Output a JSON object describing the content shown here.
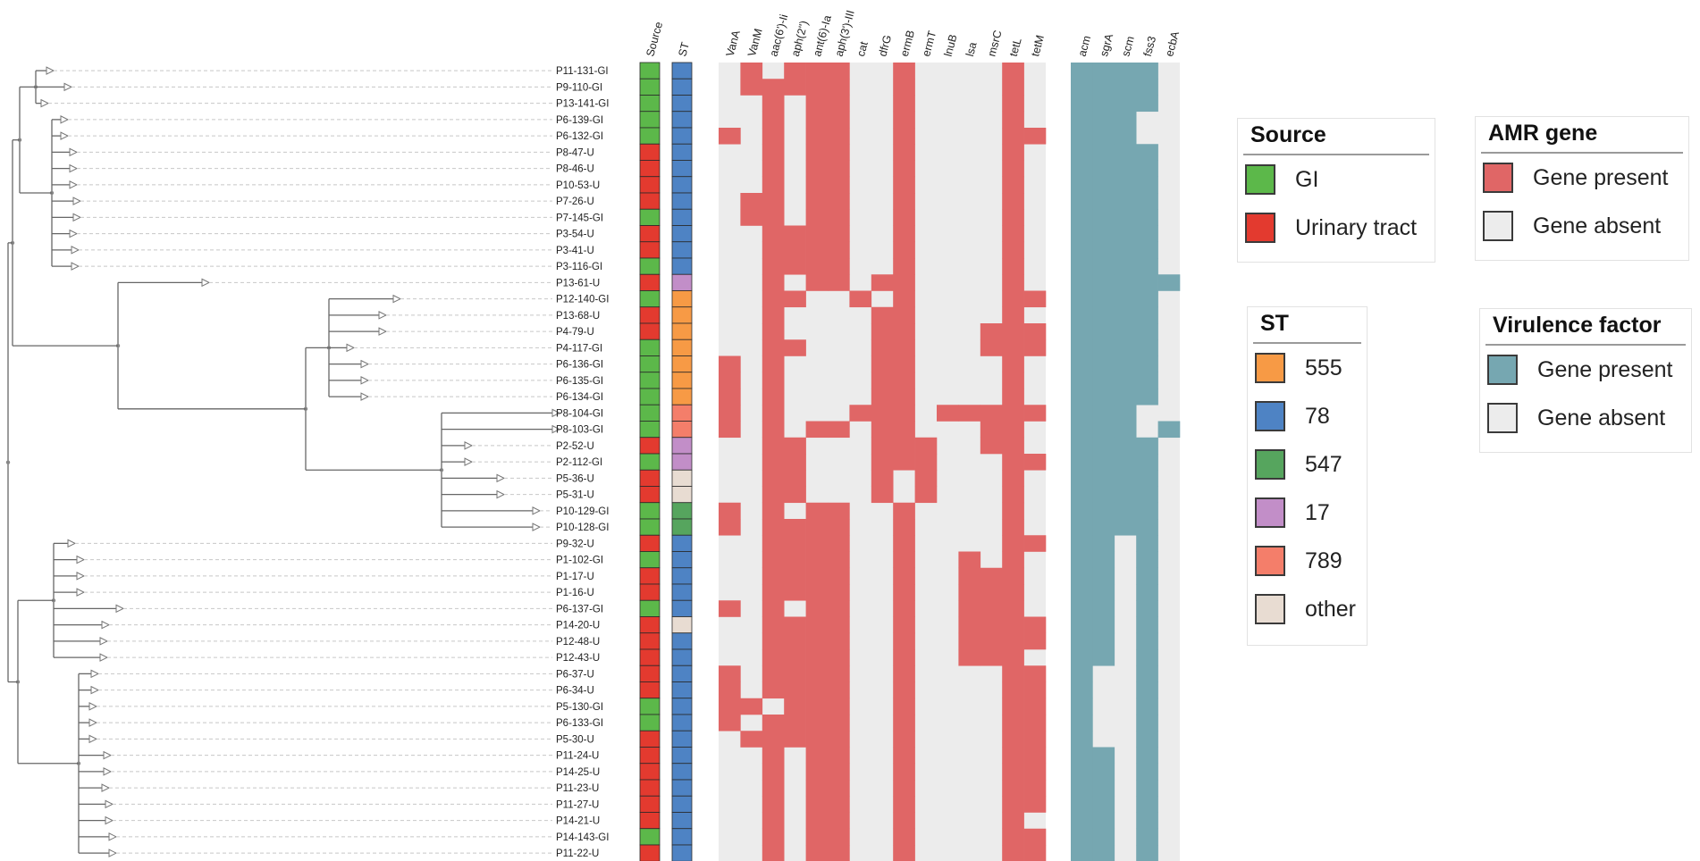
{
  "colors": {
    "source": {
      "GI": "#5cb84a",
      "Urinary tract": "#e33a2f"
    },
    "st": {
      "555": "#f79a45",
      "78": "#4e83c4",
      "547": "#56a55e",
      "17": "#c28ec8",
      "789": "#f47e6a",
      "other": "#e8dcd2"
    },
    "amr_present": "#e06666",
    "amr_absent": "#ececec",
    "vir_present": "#76a7b1",
    "vir_absent": "#ececec",
    "tree": "#666666"
  },
  "columns": {
    "meta": [
      "Source",
      "ST"
    ],
    "amr": [
      "VanA",
      "VanM",
      "aac(6')-Ii",
      "aph(2'')",
      "ant(6)-Ia",
      "aph(3')-III",
      "cat",
      "dfrG",
      "ermB",
      "ermT",
      "lnuB",
      "lsa",
      "msrC",
      "tetL",
      "tetM"
    ],
    "vir": [
      "acm",
      "sgrA",
      "scm",
      "fss3",
      "ecbA"
    ]
  },
  "legends": {
    "source": {
      "title": "Source",
      "items": [
        {
          "label": "GI",
          "key": "GI"
        },
        {
          "label": "Urinary tract",
          "key": "Urinary tract"
        }
      ]
    },
    "amr": {
      "title": "AMR gene",
      "items": [
        {
          "label": "Gene present"
        },
        {
          "label": "Gene absent"
        }
      ]
    },
    "st": {
      "title": "ST",
      "items": [
        {
          "label": "555"
        },
        {
          "label": "78"
        },
        {
          "label": "547"
        },
        {
          "label": "17"
        },
        {
          "label": "789"
        },
        {
          "label": "other"
        }
      ]
    },
    "vir": {
      "title": "Virulence factor",
      "items": [
        {
          "label": "Gene present"
        },
        {
          "label": "Gene absent"
        }
      ]
    }
  },
  "isolates": [
    {
      "label": "P11-131-GI",
      "source": "GI",
      "st": "78",
      "amr": "010111001000010",
      "vir": "11110"
    },
    {
      "label": "P9-110-GI",
      "source": "GI",
      "st": "78",
      "amr": "011111001000010",
      "vir": "11110"
    },
    {
      "label": "P13-141-GI",
      "source": "GI",
      "st": "78",
      "amr": "001011001000010",
      "vir": "11110"
    },
    {
      "label": "P6-139-GI",
      "source": "GI",
      "st": "78",
      "amr": "001011001000010",
      "vir": "11100"
    },
    {
      "label": "P6-132-GI",
      "source": "GI",
      "st": "78",
      "amr": "101011001000011",
      "vir": "11100"
    },
    {
      "label": "P8-47-U",
      "source": "Urinary tract",
      "st": "78",
      "amr": "001011001000010",
      "vir": "11110"
    },
    {
      "label": "P8-46-U",
      "source": "Urinary tract",
      "st": "78",
      "amr": "001011001000010",
      "vir": "11110"
    },
    {
      "label": "P10-53-U",
      "source": "Urinary tract",
      "st": "78",
      "amr": "001011001000010",
      "vir": "11110"
    },
    {
      "label": "P7-26-U",
      "source": "Urinary tract",
      "st": "78",
      "amr": "011011001000010",
      "vir": "11110"
    },
    {
      "label": "P7-145-GI",
      "source": "GI",
      "st": "78",
      "amr": "011011001000010",
      "vir": "11110"
    },
    {
      "label": "P3-54-U",
      "source": "Urinary tract",
      "st": "78",
      "amr": "001111001000010",
      "vir": "11110"
    },
    {
      "label": "P3-41-U",
      "source": "Urinary tract",
      "st": "78",
      "amr": "001111001000010",
      "vir": "11110"
    },
    {
      "label": "P3-116-GI",
      "source": "GI",
      "st": "78",
      "amr": "001111001000010",
      "vir": "11110"
    },
    {
      "label": "P13-61-U",
      "source": "Urinary tract",
      "st": "17",
      "amr": "001011011000010",
      "vir": "11111"
    },
    {
      "label": "P12-140-GI",
      "source": "GI",
      "st": "555",
      "amr": "001100101000011",
      "vir": "11110"
    },
    {
      "label": "P13-68-U",
      "source": "Urinary tract",
      "st": "555",
      "amr": "001000011000010",
      "vir": "11110"
    },
    {
      "label": "P4-79-U",
      "source": "Urinary tract",
      "st": "555",
      "amr": "001000011000111",
      "vir": "11110"
    },
    {
      "label": "P4-117-GI",
      "source": "GI",
      "st": "555",
      "amr": "001100011000111",
      "vir": "11110"
    },
    {
      "label": "P6-136-GI",
      "source": "GI",
      "st": "555",
      "amr": "101000011000010",
      "vir": "11110"
    },
    {
      "label": "P6-135-GI",
      "source": "GI",
      "st": "555",
      "amr": "101000011000010",
      "vir": "11110"
    },
    {
      "label": "P6-134-GI",
      "source": "GI",
      "st": "555",
      "amr": "101000011000010",
      "vir": "11110"
    },
    {
      "label": "P8-104-GI",
      "source": "GI",
      "st": "789",
      "amr": "101000111011111",
      "vir": "11100"
    },
    {
      "label": "P8-103-GI",
      "source": "GI",
      "st": "789",
      "amr": "101011011000110",
      "vir": "11101"
    },
    {
      "label": "P2-52-U",
      "source": "Urinary tract",
      "st": "17",
      "amr": "001100011100110",
      "vir": "11110"
    },
    {
      "label": "P2-112-GI",
      "source": "GI",
      "st": "17",
      "amr": "001100011100011",
      "vir": "11110"
    },
    {
      "label": "P5-36-U",
      "source": "Urinary tract",
      "st": "other",
      "amr": "001100010100010",
      "vir": "11110"
    },
    {
      "label": "P5-31-U",
      "source": "Urinary tract",
      "st": "other",
      "amr": "001100010100010",
      "vir": "11110"
    },
    {
      "label": "P10-129-GI",
      "source": "GI",
      "st": "547",
      "amr": "101011001000010",
      "vir": "11110"
    },
    {
      "label": "P10-128-GI",
      "source": "GI",
      "st": "547",
      "amr": "101111001000010",
      "vir": "11110"
    },
    {
      "label": "P9-32-U",
      "source": "Urinary tract",
      "st": "78",
      "amr": "001111001000011",
      "vir": "11010"
    },
    {
      "label": "P1-102-GI",
      "source": "GI",
      "st": "78",
      "amr": "001111001001010",
      "vir": "11010"
    },
    {
      "label": "P1-17-U",
      "source": "Urinary tract",
      "st": "78",
      "amr": "001111001001110",
      "vir": "11010"
    },
    {
      "label": "P1-16-U",
      "source": "Urinary tract",
      "st": "78",
      "amr": "001111001001110",
      "vir": "11010"
    },
    {
      "label": "P6-137-GI",
      "source": "GI",
      "st": "78",
      "amr": "101011001001110",
      "vir": "11010"
    },
    {
      "label": "P14-20-U",
      "source": "Urinary tract",
      "st": "other",
      "amr": "001111001001111",
      "vir": "11010"
    },
    {
      "label": "P12-48-U",
      "source": "Urinary tract",
      "st": "78",
      "amr": "001111001001111",
      "vir": "11010"
    },
    {
      "label": "P12-43-U",
      "source": "Urinary tract",
      "st": "78",
      "amr": "001111001001110",
      "vir": "11010"
    },
    {
      "label": "P6-37-U",
      "source": "Urinary tract",
      "st": "78",
      "amr": "101111001000011",
      "vir": "10010"
    },
    {
      "label": "P6-34-U",
      "source": "Urinary tract",
      "st": "78",
      "amr": "101111001000011",
      "vir": "10010"
    },
    {
      "label": "P5-130-GI",
      "source": "GI",
      "st": "78",
      "amr": "110111001000011",
      "vir": "10010"
    },
    {
      "label": "P6-133-GI",
      "source": "GI",
      "st": "78",
      "amr": "101111001000011",
      "vir": "10010"
    },
    {
      "label": "P5-30-U",
      "source": "Urinary tract",
      "st": "78",
      "amr": "011111001000011",
      "vir": "10010"
    },
    {
      "label": "P11-24-U",
      "source": "Urinary tract",
      "st": "78",
      "amr": "001011001000011",
      "vir": "11010"
    },
    {
      "label": "P14-25-U",
      "source": "Urinary tract",
      "st": "78",
      "amr": "001011001000011",
      "vir": "11010"
    },
    {
      "label": "P11-23-U",
      "source": "Urinary tract",
      "st": "78",
      "amr": "001011001000011",
      "vir": "11010"
    },
    {
      "label": "P11-27-U",
      "source": "Urinary tract",
      "st": "78",
      "amr": "001011001000011",
      "vir": "11010"
    },
    {
      "label": "P14-21-U",
      "source": "Urinary tract",
      "st": "78",
      "amr": "001011001000010",
      "vir": "11010"
    },
    {
      "label": "P14-143-GI",
      "source": "GI",
      "st": "78",
      "amr": "001011001000011",
      "vir": "11010"
    },
    {
      "label": "P11-22-U",
      "source": "Urinary tract",
      "st": "78",
      "amr": "001011001000011",
      "vir": "11010"
    }
  ]
}
